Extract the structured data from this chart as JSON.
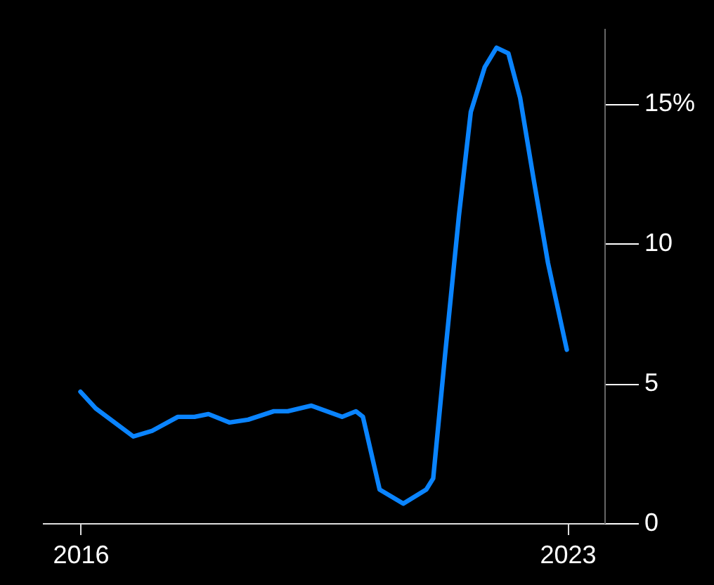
{
  "chart_data": {
    "type": "line",
    "x": [
      2016.0,
      2016.22,
      2016.76,
      2017.03,
      2017.4,
      2017.64,
      2017.84,
      2018.14,
      2018.41,
      2018.78,
      2018.98,
      2019.32,
      2019.76,
      2019.96,
      2020.06,
      2020.3,
      2020.64,
      2020.97,
      2021.07,
      2021.24,
      2021.44,
      2021.61,
      2021.81,
      2021.98,
      2022.15,
      2022.32,
      2022.52,
      2022.72,
      2022.99
    ],
    "series": [
      {
        "color": "#0a84ff",
        "values": [
          4.7,
          4.1,
          3.1,
          3.3,
          3.8,
          3.8,
          3.9,
          3.6,
          3.7,
          4.0,
          4.0,
          4.2,
          3.8,
          4.0,
          3.8,
          1.2,
          0.7,
          1.2,
          1.6,
          6.0,
          11.0,
          14.7,
          16.3,
          17.0,
          16.8,
          15.2,
          12.2,
          9.3,
          6.2
        ]
      }
    ],
    "xlim": [
      2015.45,
      2023.53
    ],
    "ylim": [
      0,
      17.7
    ],
    "xticks": [
      2016,
      2023
    ],
    "yticks": [
      0,
      5,
      10,
      {
        "value": 15,
        "label": "15%"
      }
    ],
    "grid": false
  }
}
